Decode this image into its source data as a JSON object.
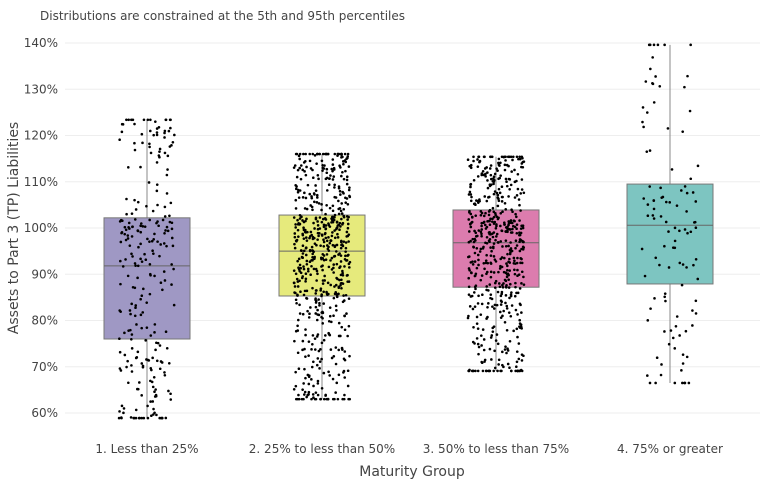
{
  "chart_data": {
    "type": "box",
    "subtitle": "Distributions are constrained at the 5th and 95th percentiles",
    "xlabel": "Maturity Group",
    "ylabel": "Assets to Part 3 (TP) Liabilities",
    "ylim": [
      58,
      141
    ],
    "yticks": [
      60,
      70,
      80,
      90,
      100,
      110,
      120,
      130,
      140
    ],
    "ytick_labels": [
      "60%",
      "70%",
      "80%",
      "90%",
      "100%",
      "110%",
      "120%",
      "130%",
      "140%"
    ],
    "grid": true,
    "points_shown": "all, jittered",
    "categories": [
      "1. Less than 25%",
      "2. 25% to less than 50%",
      "3. 50% to less than 75%",
      "4. 75% or greater"
    ],
    "series": [
      {
        "category": "1. Less than 25%",
        "min": 58.9,
        "q1": 76.0,
        "median": 91.8,
        "q3": 102.2,
        "max": 123.4,
        "color": "#9f98c4"
      },
      {
        "category": "2. 25% to less than 50%",
        "min": 63.0,
        "q1": 85.3,
        "median": 95.0,
        "q3": 102.8,
        "max": 116.0,
        "color": "#e6ea7c"
      },
      {
        "category": "3. 50% to less than 75%",
        "min": 69.1,
        "q1": 87.2,
        "median": 96.8,
        "q3": 103.9,
        "max": 115.4,
        "color": "#dc7cae"
      },
      {
        "category": "4. 75% or greater",
        "min": 66.5,
        "q1": 87.9,
        "median": 100.6,
        "q3": 109.5,
        "max": 139.6,
        "color": "#7dc5c1"
      }
    ]
  }
}
